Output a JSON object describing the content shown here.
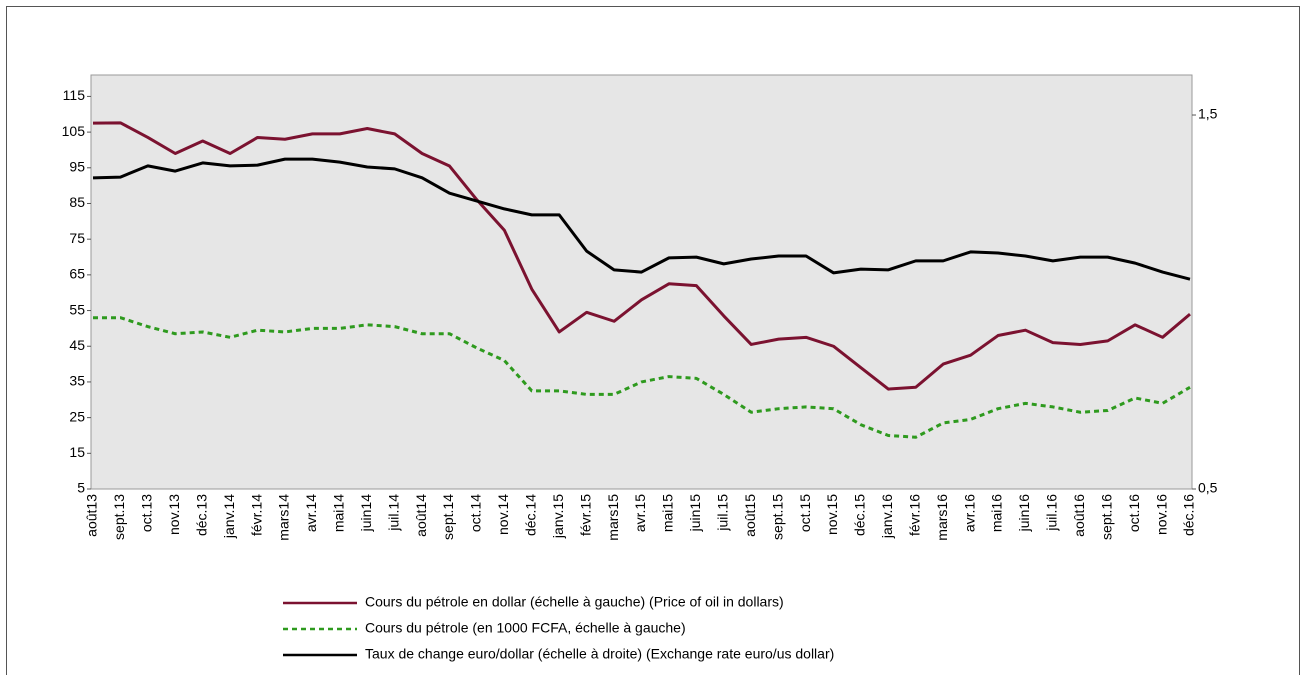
{
  "chart_data": {
    "type": "line",
    "categories": [
      "août13",
      "sept.13",
      "oct.13",
      "nov.13",
      "déc.13",
      "janv.14",
      "févr.14",
      "mars14",
      "avr.14",
      "mai14",
      "juin14",
      "juil.14",
      "août14",
      "sept.14",
      "oct.14",
      "nov.14",
      "déc.14",
      "janv.15",
      "févr.15",
      "mars15",
      "avr.15",
      "mai15",
      "juin15",
      "juil.15",
      "août15",
      "sept.15",
      "oct.15",
      "nov.15",
      "déc.15",
      "janv.16",
      "févr.16",
      "mars16",
      "avr.16",
      "mai16",
      "juin16",
      "juil.16",
      "août16",
      "sept.16",
      "oct.16",
      "nov.16",
      "déc.16"
    ],
    "series": [
      {
        "name": "Cours du pétrole en dollar (échelle à gauche) (Price of oil in dollars)",
        "color": "#7b1230",
        "dash": false,
        "values": [
          107.5,
          107.6,
          103.5,
          99,
          102.5,
          99,
          103.5,
          103,
          104.5,
          104.5,
          106,
          104.5,
          99,
          95.5,
          86,
          77.5,
          61,
          49,
          54.5,
          52,
          58,
          62.5,
          62,
          53.5,
          45.5,
          47,
          47.5,
          45,
          39,
          33,
          33.5,
          40,
          42.5,
          48,
          49.5,
          46,
          45.5,
          46.5,
          51,
          47.5,
          54
        ]
      },
      {
        "name": "Cours du pétrole (en 1000 FCFA, échelle à gauche)",
        "color": "#2e9a1e",
        "dash": true,
        "values": [
          53,
          53,
          50.5,
          48.5,
          49,
          47.5,
          49.5,
          49,
          50,
          50,
          51,
          50.5,
          48.5,
          48.5,
          44.5,
          41,
          32.5,
          32.5,
          31.5,
          31.5,
          35,
          36.5,
          36,
          31.5,
          26.5,
          27.5,
          28,
          27.5,
          23,
          20,
          19.5,
          23.5,
          24.5,
          27.5,
          29,
          28,
          26.5,
          27,
          30.5,
          29,
          33.5
        ]
      },
      {
        "name": "Taux de change euro/dollar (échelle à droite) (Exchange rate euro/us dollar)",
        "color": "#000000",
        "dash": false,
        "axis": "y2",
        "values": [
          1.332,
          1.334,
          1.364,
          1.35,
          1.372,
          1.364,
          1.366,
          1.382,
          1.382,
          1.374,
          1.361,
          1.356,
          1.332,
          1.291,
          1.27,
          1.249,
          1.233,
          1.233,
          1.136,
          1.086,
          1.08,
          1.118,
          1.12,
          1.102,
          1.115,
          1.123,
          1.123,
          1.078,
          1.088,
          1.086,
          1.11,
          1.11,
          1.134,
          1.131,
          1.123,
          1.11,
          1.12,
          1.12,
          1.104,
          1.08,
          1.061
        ]
      }
    ],
    "ylim": [
      5,
      121
    ],
    "yticks": [
      5,
      15,
      25,
      35,
      45,
      55,
      65,
      75,
      85,
      95,
      105,
      115
    ],
    "y2lim": [
      0.5,
      1.607
    ],
    "y2ticks": [
      {
        "value": 0.5,
        "label": "0,5"
      },
      {
        "value": 1.5,
        "label": "1,5"
      }
    ],
    "grid": false
  }
}
